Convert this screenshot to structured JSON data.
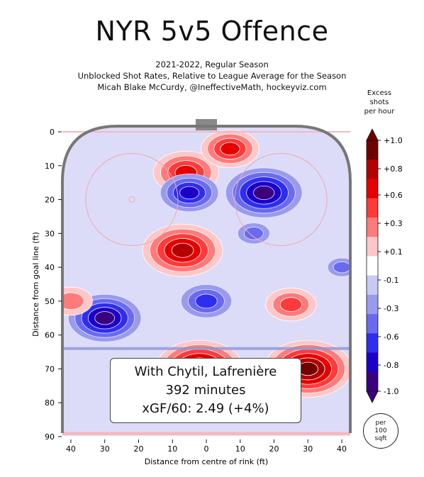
{
  "title": "NYR 5v5 Offence",
  "subtitle_lines": [
    "2021-2022, Regular Season",
    "Unblocked Shot Rates, Relative to League Average for the Season",
    "Micah Blake McCurdy, @IneffectiveMath, hockeyviz.com"
  ],
  "annotation": {
    "players": "With Chytil, Lafrenière",
    "minutes": "392 minutes",
    "xgf": "xGF/60: 2.49 (+4%)"
  },
  "legend": {
    "title_lines": [
      "Excess",
      "shots",
      "per hour"
    ],
    "unit_lines": [
      "per",
      "100",
      "sqft"
    ],
    "ticks": [
      "+1.0",
      "+0.8",
      "+0.6",
      "+0.3",
      "+0.1",
      "-0.1",
      "-0.3",
      "-0.6",
      "-0.8",
      "-1.0"
    ],
    "colors": [
      "#6e0000",
      "#b30000",
      "#e60000",
      "#ff3a3a",
      "#ff7a7a",
      "#ffc7c7",
      "#ffffff",
      "#c9c9f5",
      "#9a9aee",
      "#6a6af0",
      "#2e2ef0",
      "#1b00c9",
      "#3a0080"
    ]
  },
  "chart_data": {
    "type": "heatmap",
    "title": "NYR 5v5 Offence",
    "xlabel": "Distance from centre of rink (ft)",
    "ylabel": "Distance from goal line (ft)",
    "x_ticks": [
      40,
      30,
      20,
      10,
      0,
      10,
      20,
      30,
      40
    ],
    "y_ticks": [
      0,
      10,
      20,
      30,
      40,
      50,
      60,
      70,
      80,
      90
    ],
    "xlim": [
      -42.5,
      42.5
    ],
    "ylim": [
      0,
      90
    ],
    "colorbar_range": [
      -1.0,
      1.0
    ],
    "hotspots": [
      {
        "x": -6,
        "y": 12,
        "value": 0.7
      },
      {
        "x": 7,
        "y": 5,
        "value": 0.6
      },
      {
        "x": -7,
        "y": 35,
        "value": 0.9
      },
      {
        "x": 17,
        "y": 18,
        "value": -0.85
      },
      {
        "x": -5,
        "y": 18,
        "value": -0.6
      },
      {
        "x": -30,
        "y": 55,
        "value": -0.8
      },
      {
        "x": 0,
        "y": 50,
        "value": -0.5
      },
      {
        "x": 25,
        "y": 51,
        "value": 0.5
      },
      {
        "x": -40,
        "y": 50,
        "value": 0.4
      },
      {
        "x": -2,
        "y": 70,
        "value": 1.0
      },
      {
        "x": 30,
        "y": 70,
        "value": 1.0
      },
      {
        "x": 14,
        "y": 30,
        "value": -0.25
      },
      {
        "x": 40,
        "y": 40,
        "value": -0.2
      }
    ]
  }
}
